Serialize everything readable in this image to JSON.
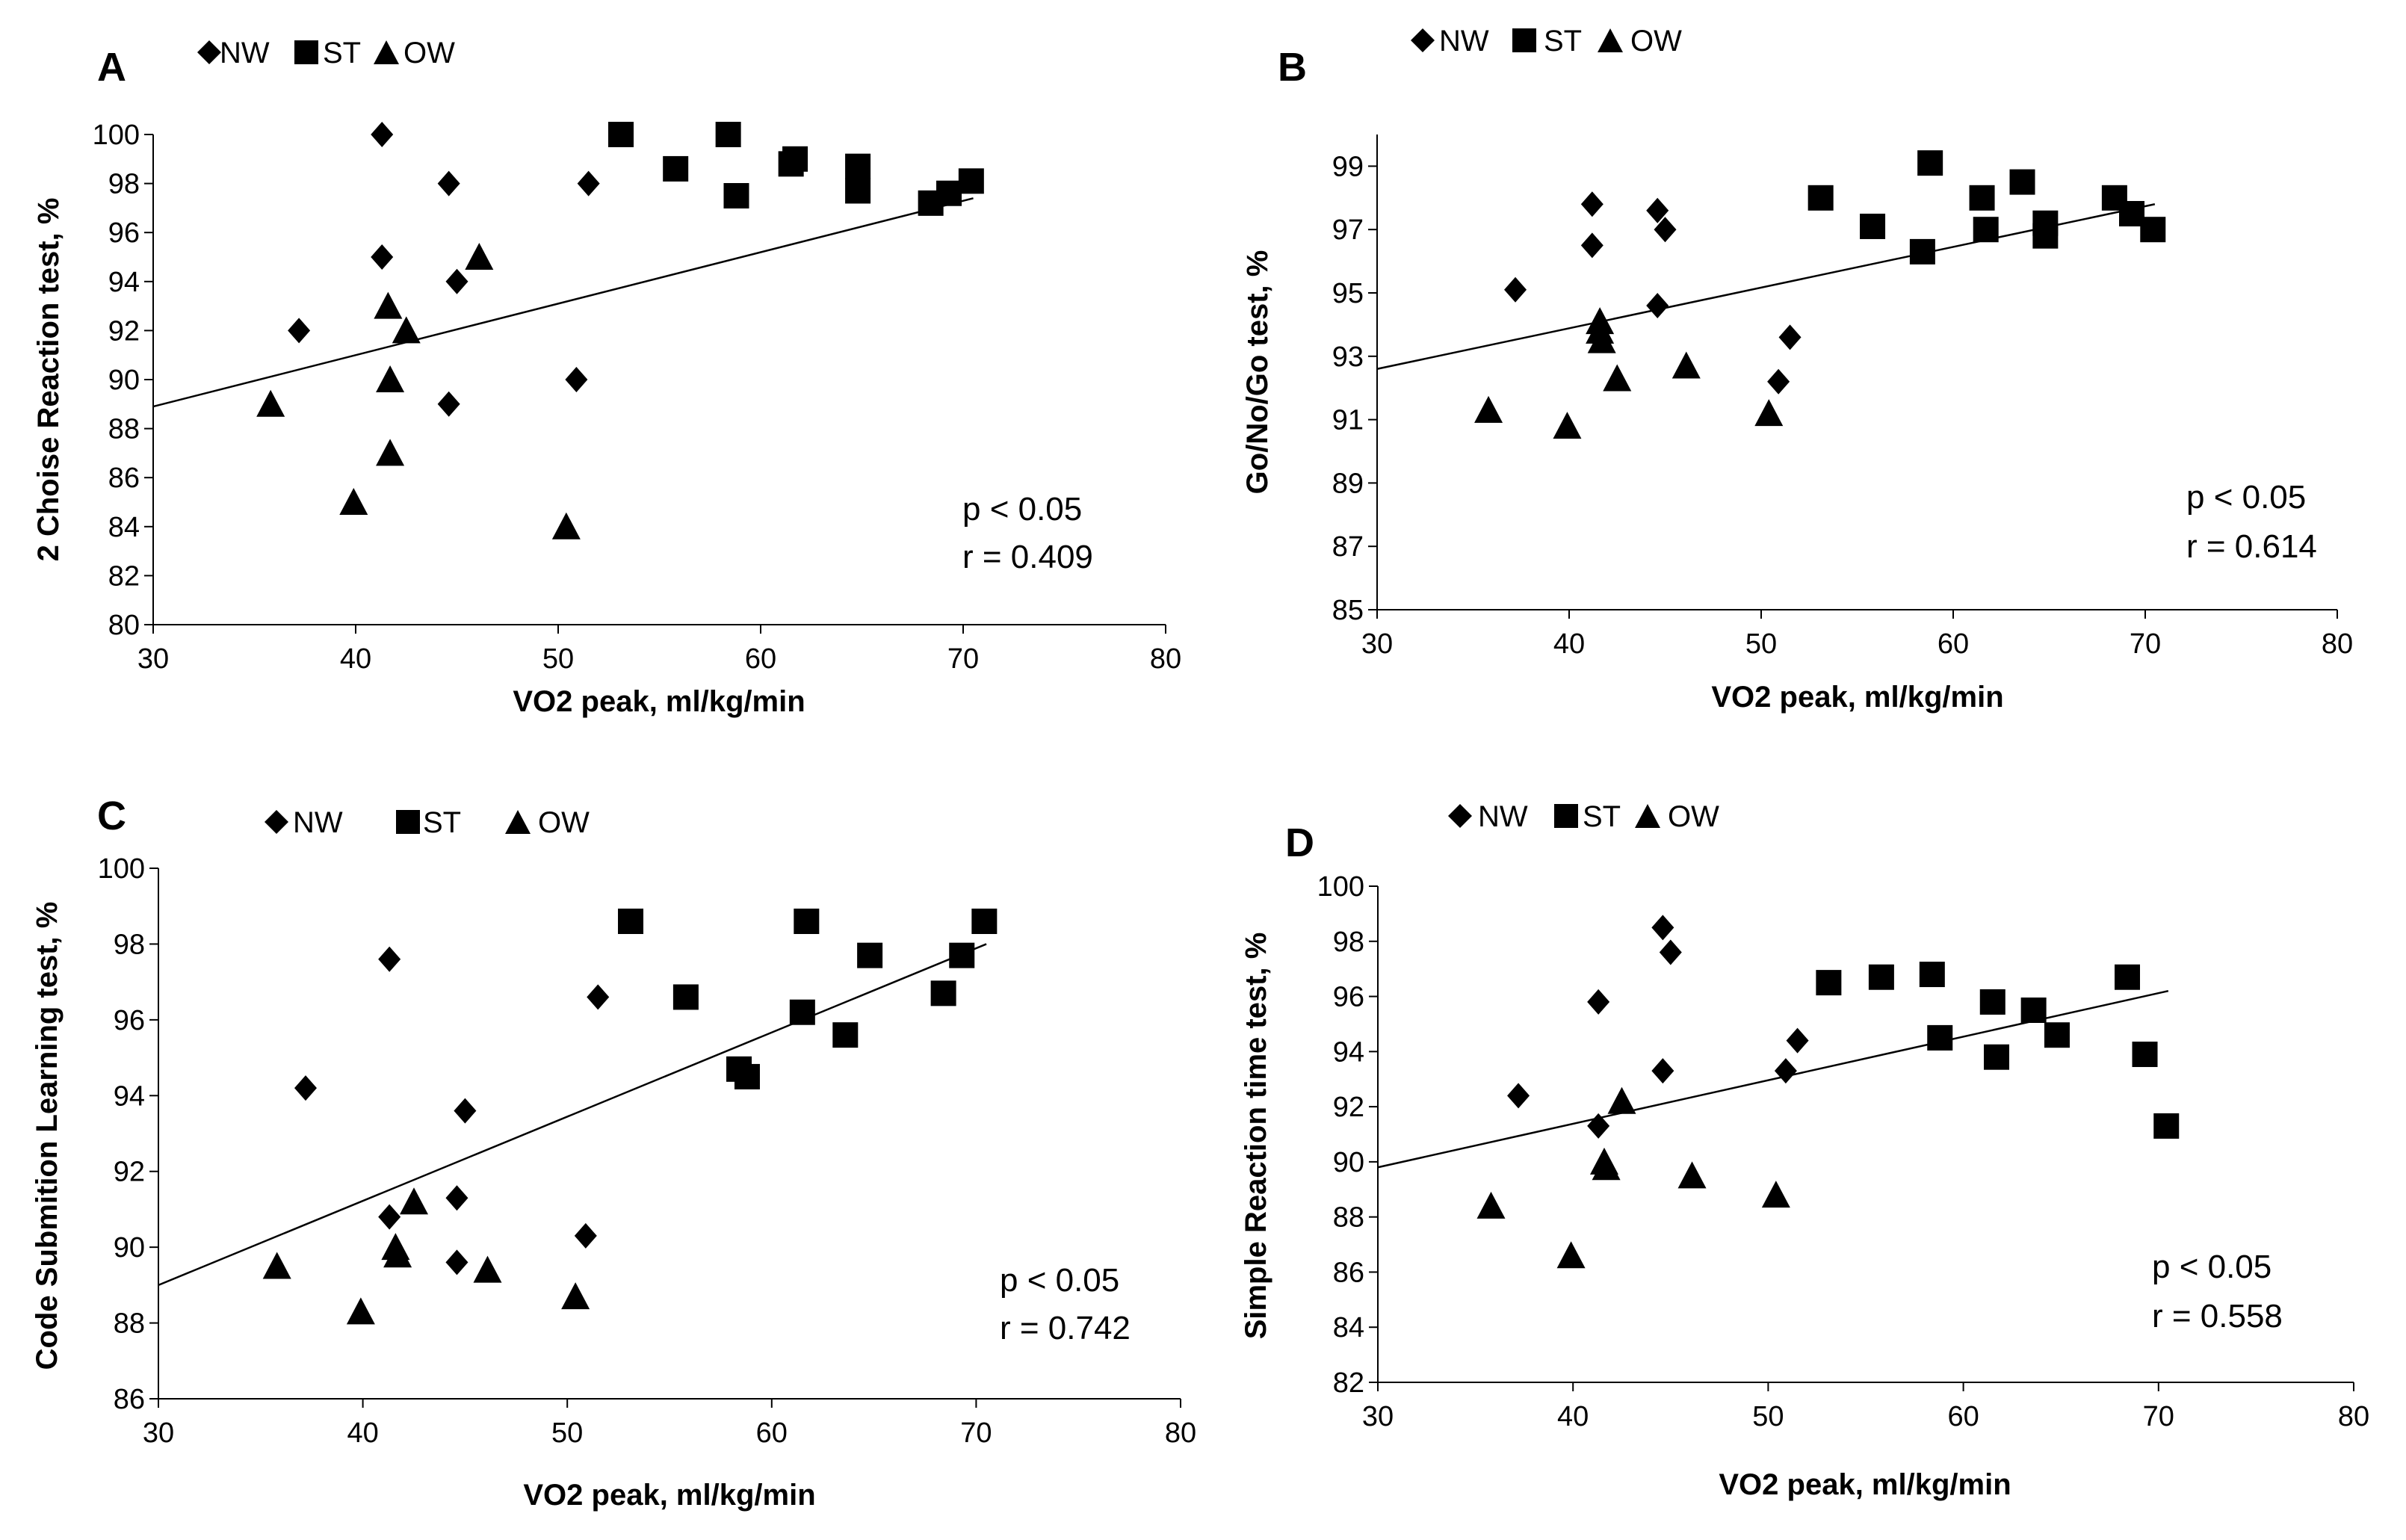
{
  "figure": {
    "colors": {
      "ink": "#000000",
      "background": "#ffffff"
    },
    "legend_labels": {
      "nw": "NW",
      "st": "ST",
      "ow": "OW"
    }
  },
  "chart_data": [
    {
      "panel": "A",
      "type": "scatter",
      "xlabel": "VO2 peak, ml/kg/min",
      "ylabel": "2 Choise Reaction test, %",
      "xlim": [
        30,
        80
      ],
      "ylim": [
        80,
        100
      ],
      "xticks": [
        30,
        40,
        50,
        60,
        70,
        80
      ],
      "yticks": [
        80,
        82,
        84,
        86,
        88,
        90,
        92,
        94,
        96,
        98,
        100
      ],
      "legend": [
        "NW",
        "ST",
        "OW"
      ],
      "series": [
        {
          "name": "NW",
          "marker": "diamond",
          "x": [
            37.2,
            41.3,
            41.3,
            44.6,
            45.0,
            44.6,
            50.9,
            51.5
          ],
          "y": [
            92,
            100,
            95,
            98,
            94,
            89,
            90,
            98
          ]
        },
        {
          "name": "ST",
          "marker": "square",
          "x": [
            53.1,
            55.8,
            58.4,
            58.8,
            61.5,
            61.7,
            64.8,
            64.8,
            68.4,
            69.3,
            70.4
          ],
          "y": [
            100,
            98.6,
            100,
            97.5,
            98.8,
            99,
            98.7,
            97.7,
            97.2,
            97.6,
            98.1
          ]
        },
        {
          "name": "OW",
          "marker": "triangle",
          "x": [
            35.8,
            39.9,
            41.6,
            41.7,
            41.7,
            42.5,
            46.1,
            50.4
          ],
          "y": [
            89,
            85,
            93,
            90,
            87,
            92,
            95,
            84
          ]
        }
      ],
      "trendline": {
        "x": [
          30,
          70.5
        ],
        "y": [
          88.9,
          97.4
        ]
      },
      "annotations": {
        "p": "p < 0.05",
        "r": "r = 0.409"
      }
    },
    {
      "panel": "B",
      "type": "scatter",
      "xlabel": "VO2 peak, ml/kg/min",
      "ylabel": "Go/No/Go test, %",
      "xlim": [
        30,
        80
      ],
      "ylim": [
        85,
        100
      ],
      "xticks": [
        30,
        40,
        50,
        60,
        70,
        80
      ],
      "yticks": [
        85,
        87,
        89,
        91,
        93,
        95,
        97,
        99
      ],
      "legend": [
        "NW",
        "ST",
        "OW"
      ],
      "series": [
        {
          "name": "NW",
          "marker": "diamond",
          "x": [
            37.2,
            41.2,
            41.2,
            44.6,
            45.0,
            44.6,
            50.9,
            51.5
          ],
          "y": [
            95.1,
            97.8,
            96.5,
            97.6,
            97.0,
            94.6,
            92.2,
            93.6
          ]
        },
        {
          "name": "ST",
          "marker": "square",
          "x": [
            53.1,
            55.8,
            58.4,
            58.8,
            61.5,
            61.7,
            63.6,
            64.8,
            64.8,
            68.4,
            69.3,
            70.4
          ],
          "y": [
            98.0,
            97.1,
            96.3,
            99.1,
            98.0,
            97.0,
            98.5,
            97.2,
            96.8,
            98.0,
            97.5,
            97.0
          ]
        },
        {
          "name": "OW",
          "marker": "triangle",
          "x": [
            35.8,
            39.9,
            41.6,
            41.6,
            41.7,
            42.5,
            46.1,
            50.4
          ],
          "y": [
            91.3,
            90.8,
            94.1,
            93.8,
            93.5,
            92.3,
            92.7,
            91.2
          ]
        }
      ],
      "trendline": {
        "x": [
          30,
          70.5
        ],
        "y": [
          92.6,
          97.8
        ]
      },
      "annotations": {
        "p": "p < 0.05",
        "r": "r = 0.614"
      }
    },
    {
      "panel": "C",
      "type": "scatter",
      "xlabel": "VO2 peak, ml/kg/min",
      "ylabel": "Code Submition Learning test, %",
      "xlim": [
        30,
        80
      ],
      "ylim": [
        86,
        100
      ],
      "xticks": [
        30,
        40,
        50,
        60,
        70,
        80
      ],
      "yticks": [
        86,
        88,
        90,
        92,
        94,
        96,
        98,
        100
      ],
      "legend": [
        "NW",
        "ST",
        "OW"
      ],
      "series": [
        {
          "name": "NW",
          "marker": "diamond",
          "x": [
            37.2,
            41.3,
            41.3,
            44.6,
            45.0,
            44.6,
            50.9,
            51.5
          ],
          "y": [
            94.2,
            97.6,
            90.8,
            91.3,
            93.6,
            89.6,
            90.3,
            96.6
          ]
        },
        {
          "name": "ST",
          "marker": "square",
          "x": [
            53.1,
            55.8,
            58.4,
            58.8,
            61.5,
            61.7,
            63.6,
            64.8,
            68.4,
            69.3,
            70.4
          ],
          "y": [
            98.6,
            96.6,
            94.7,
            94.5,
            96.2,
            98.6,
            95.6,
            97.7,
            96.7,
            97.7,
            98.6
          ]
        },
        {
          "name": "OW",
          "marker": "triangle",
          "x": [
            35.8,
            39.9,
            41.6,
            41.7,
            42.5,
            46.1,
            50.4
          ],
          "y": [
            89.5,
            88.3,
            90.0,
            89.8,
            91.2,
            89.4,
            88.7
          ]
        }
      ],
      "trendline": {
        "x": [
          30,
          70.5
        ],
        "y": [
          89.0,
          98.0
        ]
      },
      "annotations": {
        "p": "p < 0.05",
        "r": "r = 0.742"
      }
    },
    {
      "panel": "D",
      "type": "scatter",
      "xlabel": "VO2 peak, ml/kg/min",
      "ylabel": "Simple Reaction time test, %",
      "xlim": [
        30,
        80
      ],
      "ylim": [
        82,
        100
      ],
      "xticks": [
        30,
        40,
        50,
        60,
        70,
        80
      ],
      "yticks": [
        82,
        84,
        86,
        88,
        90,
        92,
        94,
        96,
        98,
        100
      ],
      "legend": [
        "NW",
        "ST",
        "OW"
      ],
      "series": [
        {
          "name": "NW",
          "marker": "diamond",
          "x": [
            37.2,
            41.3,
            41.3,
            44.6,
            45.0,
            44.6,
            50.9,
            51.5
          ],
          "y": [
            92.4,
            95.8,
            91.3,
            98.5,
            97.6,
            93.3,
            93.3,
            94.4
          ]
        },
        {
          "name": "ST",
          "marker": "square",
          "x": [
            53.1,
            55.8,
            58.4,
            58.8,
            61.5,
            61.7,
            63.6,
            64.8,
            68.4,
            69.3,
            70.4
          ],
          "y": [
            96.5,
            96.7,
            96.8,
            94.5,
            95.8,
            93.8,
            95.5,
            94.6,
            96.7,
            93.9,
            91.3
          ]
        },
        {
          "name": "OW",
          "marker": "triangle",
          "x": [
            35.8,
            39.9,
            41.6,
            41.7,
            42.5,
            46.1,
            50.4
          ],
          "y": [
            88.4,
            86.6,
            90.0,
            89.8,
            92.2,
            89.5,
            88.8
          ]
        }
      ],
      "trendline": {
        "x": [
          30,
          70.5
        ],
        "y": [
          89.8,
          96.2
        ]
      },
      "annotations": {
        "p": "p < 0.05",
        "r": "r = 0.558"
      }
    }
  ]
}
